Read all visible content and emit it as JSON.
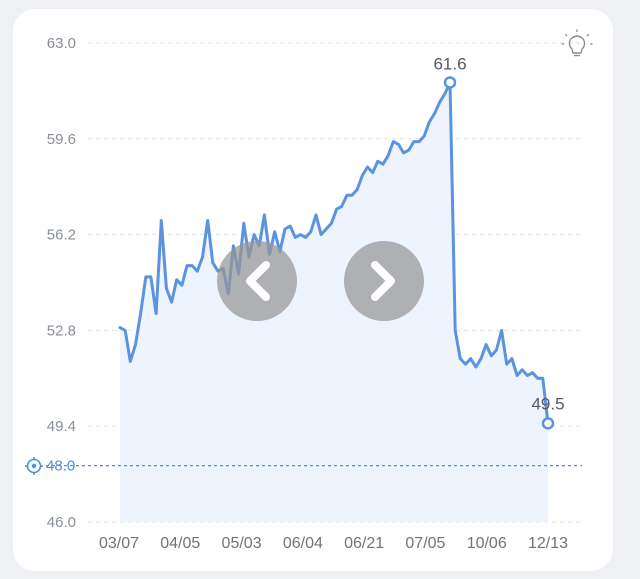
{
  "chart_data": {
    "type": "line",
    "ylim": [
      46.0,
      63.0
    ],
    "y_ticks": [
      63.0,
      59.6,
      56.2,
      52.8,
      49.4,
      46.0
    ],
    "y_tick_labels": [
      "63.0",
      "59.6",
      "56.2",
      "52.8",
      "49.4",
      "46.0"
    ],
    "x_tick_labels": [
      "03/07",
      "04/05",
      "05/03",
      "06/04",
      "06/21",
      "07/05",
      "10/06",
      "12/13"
    ],
    "target": {
      "value": 48.0,
      "label": "48.0"
    },
    "max_label": "61.6",
    "last_label": "49.5",
    "grid": true,
    "series": [
      {
        "values": [
          52.9,
          52.8,
          51.7,
          52.3,
          53.4,
          54.7,
          54.7,
          53.4,
          56.7,
          54.3,
          53.8,
          54.6,
          54.4,
          55.1,
          55.1,
          54.9,
          55.4,
          56.7,
          55.2,
          54.9,
          55.0,
          54.1,
          55.8,
          54.8,
          56.6,
          55.4,
          56.2,
          55.8,
          56.9,
          55.5,
          56.3,
          55.6,
          56.4,
          56.5,
          56.1,
          56.2,
          56.1,
          56.3,
          56.9,
          56.2,
          56.4,
          56.6,
          57.1,
          57.2,
          57.6,
          57.6,
          57.8,
          58.3,
          58.6,
          58.4,
          58.8,
          58.7,
          59.0,
          59.5,
          59.4,
          59.1,
          59.2,
          59.5,
          59.5,
          59.7,
          60.2,
          60.5,
          60.9,
          61.2,
          61.6,
          52.8,
          51.8,
          51.6,
          51.8,
          51.5,
          51.8,
          52.3,
          51.9,
          52.1,
          52.8,
          51.6,
          51.8,
          51.2,
          51.4,
          51.2,
          51.3,
          51.1,
          51.1,
          49.5
        ],
        "color": "#5b93de",
        "fill": "#edf4fd"
      }
    ]
  },
  "icons": {
    "tip": "lightbulb-icon",
    "target": "target-icon",
    "prev": "chevron-left-icon",
    "next": "chevron-right-icon"
  },
  "colors": {
    "line": "#5b93de",
    "target": "#4a8fe0",
    "nav_button": "rgba(150,150,150,0.72)"
  }
}
